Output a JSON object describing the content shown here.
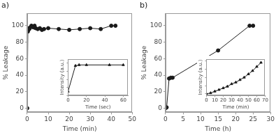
{
  "chart_data": [
    {
      "type": "line",
      "title": "a)",
      "x": [
        0,
        0.3,
        0.5,
        0.8,
        1,
        1.5,
        2,
        2.5,
        3,
        3.5,
        4,
        5,
        6,
        7,
        8,
        10,
        15,
        20,
        25,
        30,
        35,
        40,
        42
      ],
      "values": [
        0,
        93,
        95,
        97,
        96,
        98,
        100,
        99,
        98,
        100,
        97,
        96,
        97,
        95,
        96,
        97,
        96,
        95,
        96,
        97,
        96,
        100,
        100
      ],
      "xlabel": "Time (min)",
      "ylabel": "% Leakage",
      "xlim": [
        0,
        50
      ],
      "ylim": [
        -5,
        115
      ],
      "xticks": [
        0,
        10,
        20,
        30,
        40,
        50
      ],
      "yticks": [
        0,
        20,
        40,
        60,
        80,
        100
      ],
      "color": "#1a1a1a",
      "marker": "circle",
      "line_style": "solid",
      "grid": false
    },
    {
      "type": "line",
      "x": [
        0,
        8,
        12,
        20,
        45,
        60
      ],
      "values": [
        25,
        57,
        58,
        58,
        58,
        58
      ],
      "xlabel": "Time (sec)",
      "ylabel": "Intensity (a.u.)",
      "xlim": [
        0,
        65
      ],
      "ylim": [
        20,
        65
      ],
      "xticks": [
        0,
        20,
        40,
        60
      ],
      "yticks": [
        20,
        30,
        40,
        50,
        60
      ],
      "tick_labels": "x",
      "color": "#1a1a1a",
      "marker": "triangle",
      "line_style": "solid",
      "grid": false
    },
    {
      "type": "line",
      "title": "b)",
      "x": [
        0,
        0.3,
        1,
        1.5,
        2,
        15,
        24,
        25
      ],
      "values": [
        0,
        1,
        36,
        37,
        37,
        70,
        100,
        100
      ],
      "xlabel": "Time (h)",
      "ylabel": "% Leakage",
      "xlim": [
        0,
        30
      ],
      "ylim": [
        -5,
        115
      ],
      "xticks": [
        0,
        5,
        10,
        15,
        20,
        25,
        30
      ],
      "yticks": [
        0,
        20,
        40,
        60,
        80,
        100
      ],
      "color": "#1a1a1a",
      "marker": "circle",
      "line_style": "solid",
      "grid": false
    },
    {
      "type": "line",
      "x": [
        0,
        5,
        10,
        15,
        20,
        25,
        30,
        35,
        40,
        45,
        50,
        55,
        60,
        65
      ],
      "values": [
        20,
        21,
        23,
        25,
        27,
        29,
        32,
        34,
        37,
        40,
        44,
        48,
        53,
        58
      ],
      "xlabel": "Time (min)",
      "ylabel": "Intensity (a.u.)",
      "xlim": [
        0,
        70
      ],
      "ylim": [
        18,
        62
      ],
      "xticks": [
        0,
        10,
        20,
        30,
        40,
        50,
        60,
        70
      ],
      "yticks": [
        20,
        30,
        40,
        50,
        60
      ],
      "tick_labels": "x",
      "color": "#1a1a1a",
      "marker": "triangle",
      "line_style": "solid",
      "grid": false
    }
  ]
}
